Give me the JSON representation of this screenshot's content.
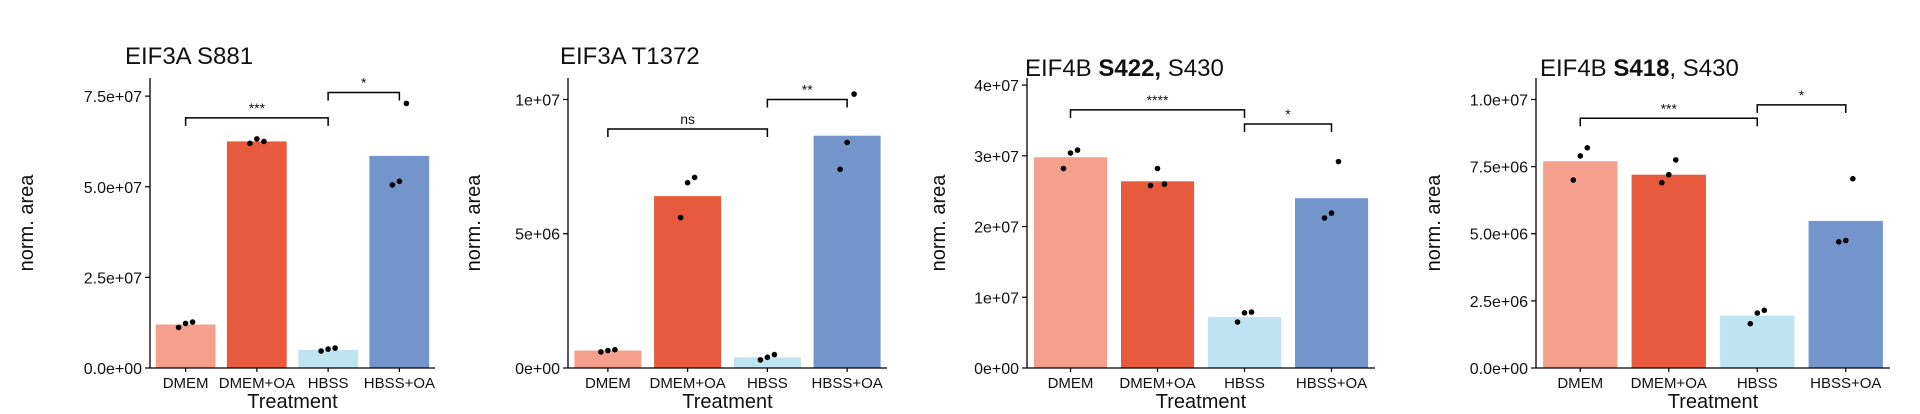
{
  "figure": {
    "panels": [
      {
        "title": {
          "parts": [
            {
              "text": "EIF3A S881",
              "bold": false
            }
          ]
        },
        "ylabel": "norm. area",
        "xlabel": "Treatment"
      },
      {
        "title": {
          "parts": [
            {
              "text": "EIF3A T1372",
              "bold": false
            }
          ]
        },
        "ylabel": "norm. area",
        "xlabel": "Treatment"
      },
      {
        "title": {
          "parts": [
            {
              "text": "EIF4B ",
              "bold": false
            },
            {
              "text": "S422,",
              "bold": true
            },
            {
              "text": " S430",
              "bold": false
            }
          ]
        },
        "ylabel": "norm. area",
        "xlabel": "Treatment"
      },
      {
        "title": {
          "parts": [
            {
              "text": "EIF4B ",
              "bold": false
            },
            {
              "text": "S418",
              "bold": true
            },
            {
              "text": ", S430",
              "bold": false
            }
          ]
        },
        "ylabel": "norm. area",
        "xlabel": "Treatment"
      }
    ]
  },
  "colors": {
    "DMEM": "#f4a08c",
    "DMEM+OA": "#e85a3d",
    "HBSS": "#bfe4f1",
    "HBSS+OA": "#7395cc",
    "points": "#000000"
  },
  "chart_data": [
    {
      "type": "bar",
      "title": "EIF3A S881",
      "xlabel": "Treatment",
      "ylabel": "norm. area",
      "categories": [
        "DMEM",
        "DMEM+OA",
        "HBSS",
        "HBSS+OA"
      ],
      "values": [
        12000000,
        62500000,
        5000000,
        58500000
      ],
      "points": [
        [
          11200000,
          12300000,
          12700000
        ],
        [
          62000000,
          63200000,
          62500000
        ],
        [
          4700000,
          5200000,
          5500000
        ],
        [
          50500000,
          51500000,
          73000000
        ]
      ],
      "ylim": [
        0,
        80000000
      ],
      "yticks": [
        0,
        25000000,
        50000000,
        75000000
      ],
      "ytick_labels": [
        "0.0e+00",
        "2.5e+07",
        "5.0e+07",
        "7.5e+07"
      ],
      "significance": [
        {
          "from": 0,
          "to": 2,
          "label": "***",
          "y": 69000000
        },
        {
          "from": 2,
          "to": 3,
          "label": "*",
          "y": 76000000
        }
      ]
    },
    {
      "type": "bar",
      "title": "EIF3A T1372",
      "xlabel": "Treatment",
      "ylabel": "norm. area",
      "categories": [
        "DMEM",
        "DMEM+OA",
        "HBSS",
        "HBSS+OA"
      ],
      "values": [
        650000,
        6400000,
        400000,
        8650000
      ],
      "points": [
        [
          600000,
          650000,
          680000
        ],
        [
          5600000,
          6900000,
          7100000
        ],
        [
          300000,
          400000,
          500000
        ],
        [
          7400000,
          8400000,
          10200000
        ]
      ],
      "ylim": [
        0,
        10800000
      ],
      "yticks": [
        0,
        5000000,
        10000000
      ],
      "ytick_labels": [
        "0e+00",
        "5e+06",
        "1e+07"
      ],
      "significance": [
        {
          "from": 0,
          "to": 2,
          "label": "ns",
          "y": 8900000
        },
        {
          "from": 2,
          "to": 3,
          "label": "**",
          "y": 10000000
        }
      ]
    },
    {
      "type": "bar",
      "title": "EIF4B S422, S430",
      "xlabel": "Treatment",
      "ylabel": "norm. area",
      "categories": [
        "DMEM",
        "DMEM+OA",
        "HBSS",
        "HBSS+OA"
      ],
      "values": [
        29800000,
        26400000,
        7200000,
        24000000
      ],
      "points": [
        [
          28200000,
          30400000,
          30800000
        ],
        [
          25800000,
          28200000,
          26000000
        ],
        [
          6500000,
          7800000,
          7900000
        ],
        [
          21200000,
          21900000,
          29200000
        ]
      ],
      "ylim": [
        0,
        41000000
      ],
      "yticks": [
        0,
        10000000,
        20000000,
        30000000,
        40000000
      ],
      "ytick_labels": [
        "0e+00",
        "1e+07",
        "2e+07",
        "3e+07",
        "4e+07"
      ],
      "significance": [
        {
          "from": 0,
          "to": 2,
          "label": "****",
          "y": 36500000
        },
        {
          "from": 2,
          "to": 3,
          "label": "*",
          "y": 34500000
        }
      ]
    },
    {
      "type": "bar",
      "title": "EIF4B S418, S430",
      "xlabel": "Treatment",
      "ylabel": "norm. area",
      "categories": [
        "DMEM",
        "DMEM+OA",
        "HBSS",
        "HBSS+OA"
      ],
      "values": [
        7700000,
        7200000,
        1950000,
        5480000
      ],
      "points": [
        [
          7000000,
          7900000,
          8200000
        ],
        [
          6900000,
          7200000,
          7750000
        ],
        [
          1650000,
          2050000,
          2150000
        ],
        [
          4700000,
          4750000,
          7050000
        ]
      ],
      "ylim": [
        0,
        10800000
      ],
      "yticks": [
        0,
        2500000,
        5000000,
        7500000,
        10000000
      ],
      "ytick_labels": [
        "0.0e+00",
        "2.5e+06",
        "5.0e+06",
        "7.5e+06",
        "1.0e+07"
      ],
      "significance": [
        {
          "from": 0,
          "to": 2,
          "label": "***",
          "y": 9300000
        },
        {
          "from": 2,
          "to": 3,
          "label": "*",
          "y": 9800000
        }
      ]
    }
  ]
}
